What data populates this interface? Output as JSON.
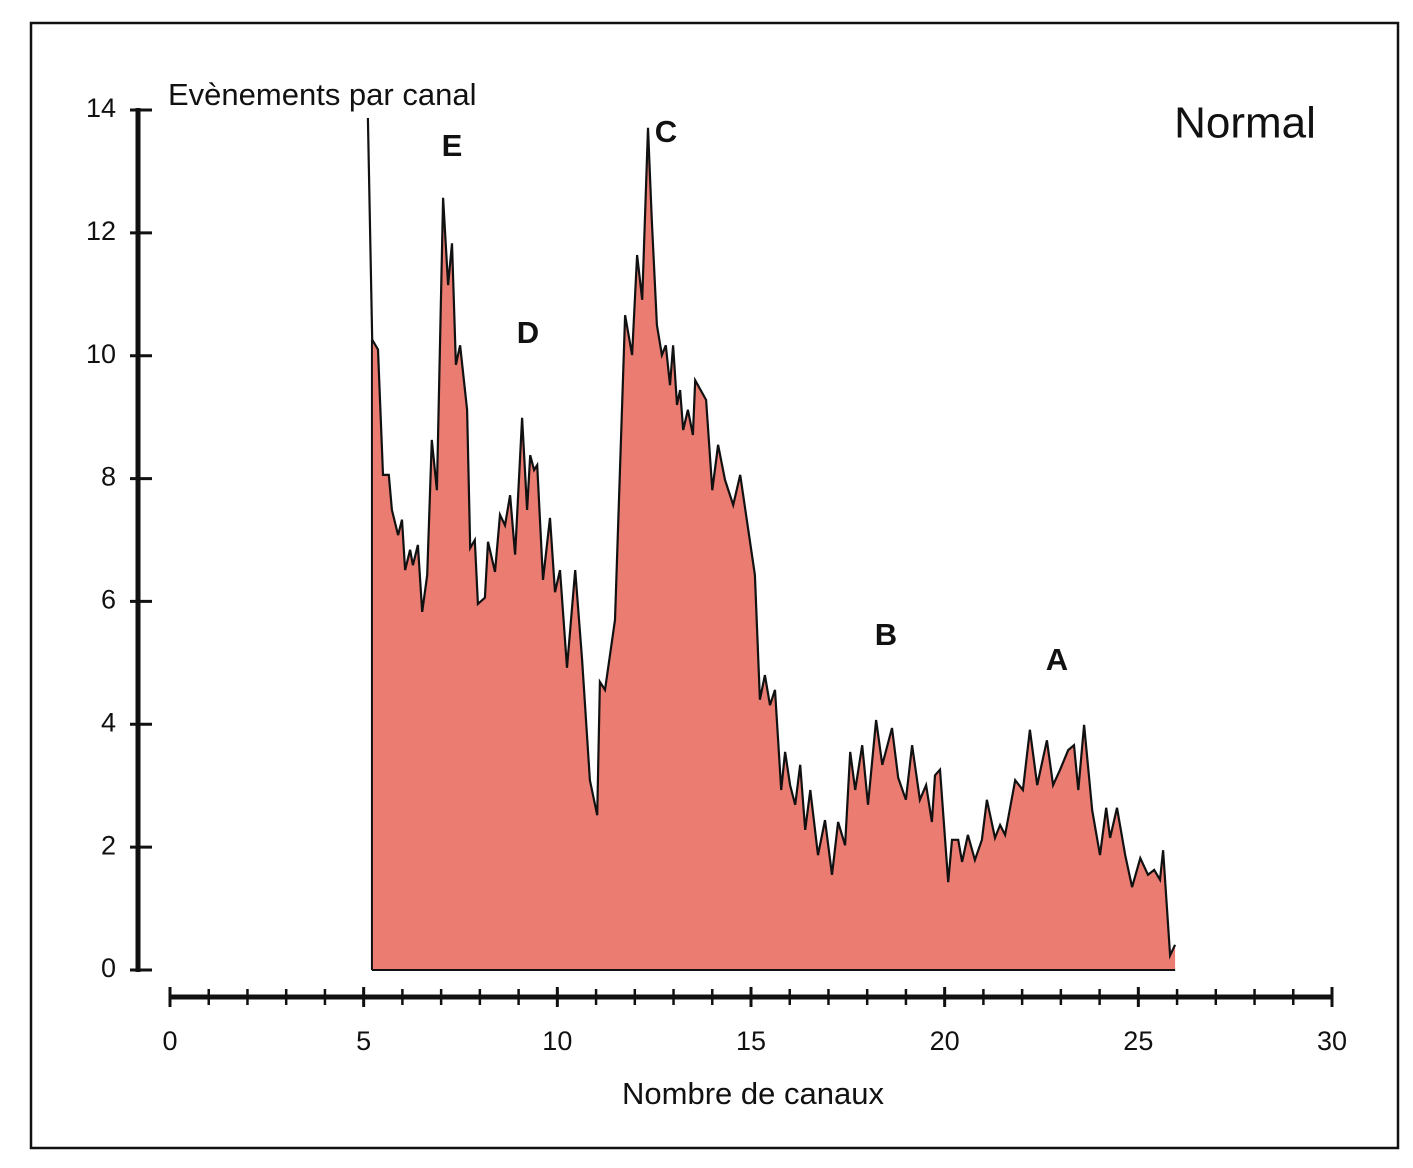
{
  "chart_data": {
    "type": "area",
    "ylabel": "Evènements par canal",
    "xlabel": "Nombre de canaux",
    "title": "Normal",
    "annotations": [
      "E",
      "D",
      "C",
      "B",
      "A"
    ],
    "color": "#ea7c72",
    "xlim": [
      0,
      30
    ],
    "xticks": [
      0,
      5,
      10,
      15,
      20,
      25,
      30
    ],
    "x_minor_step": 1,
    "ylim": [
      0,
      14
    ],
    "yticks": [
      0,
      2,
      4,
      6,
      8,
      10,
      12,
      14
    ],
    "x": [
      5.11,
      5.22,
      5.37,
      5.5,
      5.65,
      5.73,
      5.89,
      5.99,
      6.07,
      6.2,
      6.27,
      6.4,
      6.51,
      6.64,
      6.76,
      6.89,
      7.05,
      7.18,
      7.28,
      7.38,
      7.49,
      7.67,
      7.75,
      7.87,
      7.95,
      8.13,
      8.21,
      8.39,
      8.52,
      8.65,
      8.78,
      8.91,
      9.09,
      9.22,
      9.3,
      9.4,
      9.48,
      9.63,
      9.81,
      9.94,
      10.07,
      10.25,
      10.46,
      10.64,
      10.84,
      11.03,
      11.1,
      11.23,
      11.49,
      11.75,
      11.93,
      12.06,
      12.19,
      12.34,
      12.44,
      12.57,
      12.7,
      12.8,
      12.91,
      12.99,
      13.09,
      13.17,
      13.25,
      13.37,
      13.5,
      13.56,
      13.84,
      14.0,
      14.15,
      14.33,
      14.54,
      14.72,
      15.1,
      15.23,
      15.36,
      15.49,
      15.62,
      15.78,
      15.88,
      16.01,
      16.14,
      16.27,
      16.4,
      16.53,
      16.73,
      16.91,
      17.09,
      17.25,
      17.43,
      17.56,
      17.69,
      17.87,
      18.02,
      18.23,
      18.39,
      18.64,
      18.8,
      19.0,
      19.16,
      19.36,
      19.52,
      19.67,
      19.75,
      19.88,
      20.09,
      20.19,
      20.35,
      20.45,
      20.6,
      20.78,
      20.96,
      21.09,
      21.3,
      21.43,
      21.56,
      21.82,
      22.02,
      22.2,
      22.39,
      22.64,
      22.8,
      22.98,
      23.19,
      23.34,
      23.45,
      23.6,
      23.81,
      24.01,
      24.17,
      24.27,
      24.45,
      24.66,
      24.84,
      25.05,
      25.25,
      25.41,
      25.56,
      25.64,
      25.82,
      25.95
    ],
    "values": [
      13.87,
      10.26,
      10.1,
      8.06,
      8.06,
      7.49,
      7.08,
      7.33,
      6.51,
      6.84,
      6.59,
      6.92,
      5.83,
      6.43,
      8.63,
      7.81,
      12.57,
      11.15,
      11.83,
      9.85,
      10.17,
      9.12,
      6.87,
      7.0,
      5.96,
      6.06,
      6.97,
      6.48,
      7.41,
      7.24,
      7.73,
      6.76,
      8.99,
      7.49,
      8.38,
      8.14,
      8.22,
      6.35,
      7.36,
      6.15,
      6.51,
      4.92,
      6.51,
      5.05,
      3.09,
      2.52,
      4.69,
      4.56,
      5.7,
      10.66,
      10.01,
      11.64,
      10.91,
      13.71,
      12.21,
      10.5,
      10.01,
      10.17,
      9.52,
      10.17,
      9.2,
      9.44,
      8.79,
      9.12,
      8.71,
      9.6,
      9.28,
      7.81,
      8.55,
      7.98,
      7.57,
      8.06,
      6.43,
      4.4,
      4.8,
      4.31,
      4.56,
      2.93,
      3.55,
      3.01,
      2.69,
      3.34,
      2.28,
      2.93,
      1.87,
      2.44,
      1.55,
      2.41,
      2.03,
      3.55,
      2.93,
      3.66,
      2.69,
      4.07,
      3.34,
      3.94,
      3.13,
      2.77,
      3.66,
      2.77,
      3.01,
      2.41,
      3.17,
      3.26,
      1.43,
      2.12,
      2.12,
      1.76,
      2.2,
      1.79,
      2.12,
      2.77,
      2.15,
      2.36,
      2.2,
      3.09,
      2.93,
      3.91,
      3.01,
      3.74,
      3.01,
      3.26,
      3.58,
      3.66,
      2.93,
      3.99,
      2.6,
      1.87,
      2.64,
      2.15,
      2.64,
      1.87,
      1.35,
      1.82,
      1.55,
      1.63,
      1.47,
      1.95,
      0.24,
      0.41
    ]
  }
}
